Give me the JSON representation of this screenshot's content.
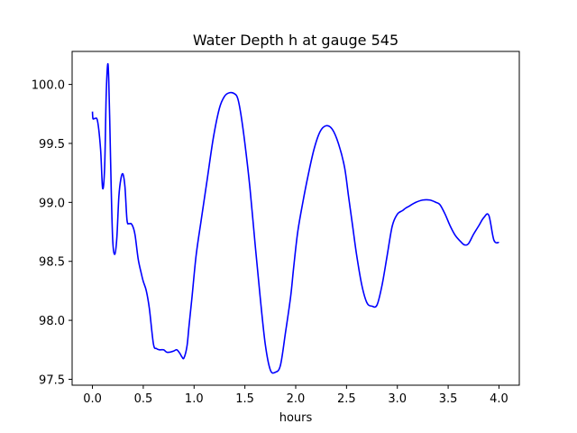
{
  "chart_data": {
    "type": "line",
    "title": "Water Depth h at gauge 545",
    "xlabel": "hours",
    "ylabel": "",
    "xlim": [
      -0.2,
      4.2
    ],
    "ylim": [
      97.45,
      100.28
    ],
    "x_ticks": [
      {
        "value": 0.0,
        "label": "0.0"
      },
      {
        "value": 0.5,
        "label": "0.5"
      },
      {
        "value": 1.0,
        "label": "1.0"
      },
      {
        "value": 1.5,
        "label": "1.5"
      },
      {
        "value": 2.0,
        "label": "2.0"
      },
      {
        "value": 2.5,
        "label": "2.5"
      },
      {
        "value": 3.0,
        "label": "3.0"
      },
      {
        "value": 3.5,
        "label": "3.5"
      },
      {
        "value": 4.0,
        "label": "4.0"
      }
    ],
    "y_ticks": [
      {
        "value": 97.5,
        "label": "97.5"
      },
      {
        "value": 98.0,
        "label": "98.0"
      },
      {
        "value": 98.5,
        "label": "98.5"
      },
      {
        "value": 99.0,
        "label": "99.0"
      },
      {
        "value": 99.5,
        "label": "99.5"
      },
      {
        "value": 100.0,
        "label": "100.0"
      }
    ],
    "grid": false,
    "series": [
      {
        "color": "#0000ff",
        "x": [
          0.0,
          0.005,
          0.02,
          0.05,
          0.08,
          0.1,
          0.12,
          0.135,
          0.15,
          0.16,
          0.17,
          0.185,
          0.2,
          0.22,
          0.24,
          0.26,
          0.28,
          0.3,
          0.32,
          0.34,
          0.36,
          0.38,
          0.4,
          0.42,
          0.45,
          0.48,
          0.5,
          0.53,
          0.56,
          0.6,
          0.63,
          0.66,
          0.7,
          0.73,
          0.76,
          0.8,
          0.83,
          0.86,
          0.88,
          0.9,
          0.93,
          0.95,
          0.98,
          1.02,
          1.07,
          1.13,
          1.19,
          1.25,
          1.3,
          1.35,
          1.4,
          1.43,
          1.46,
          1.5,
          1.55,
          1.6,
          1.65,
          1.7,
          1.75,
          1.8,
          1.85,
          1.9,
          1.95,
          1.98,
          2.02,
          2.07,
          2.12,
          2.18,
          2.24,
          2.3,
          2.36,
          2.42,
          2.48,
          2.52,
          2.56,
          2.6,
          2.65,
          2.7,
          2.75,
          2.8,
          2.85,
          2.9,
          2.95,
          3.0,
          3.05,
          3.08,
          3.12,
          3.18,
          3.25,
          3.32,
          3.38,
          3.42,
          3.47,
          3.52,
          3.57,
          3.62,
          3.66,
          3.7,
          3.75,
          3.8,
          3.85,
          3.9,
          3.95,
          4.0
        ],
        "values": [
          99.77,
          99.71,
          99.71,
          99.69,
          99.45,
          99.12,
          99.3,
          99.9,
          100.17,
          100.05,
          99.7,
          99.1,
          98.67,
          98.56,
          98.7,
          99.05,
          99.2,
          99.24,
          99.13,
          98.85,
          98.82,
          98.82,
          98.79,
          98.72,
          98.52,
          98.4,
          98.33,
          98.25,
          98.1,
          97.8,
          97.76,
          97.75,
          97.75,
          97.73,
          97.73,
          97.74,
          97.75,
          97.72,
          97.69,
          97.68,
          97.78,
          97.95,
          98.2,
          98.55,
          98.85,
          99.2,
          99.55,
          99.8,
          99.9,
          99.93,
          99.92,
          99.88,
          99.75,
          99.5,
          99.12,
          98.65,
          98.2,
          97.8,
          97.58,
          97.56,
          97.62,
          97.9,
          98.2,
          98.45,
          98.75,
          99.0,
          99.22,
          99.45,
          99.6,
          99.65,
          99.62,
          99.5,
          99.3,
          99.05,
          98.8,
          98.55,
          98.3,
          98.15,
          98.12,
          98.13,
          98.3,
          98.55,
          98.8,
          98.9,
          98.93,
          98.95,
          98.97,
          99.0,
          99.02,
          99.02,
          99.0,
          98.98,
          98.9,
          98.8,
          98.72,
          98.67,
          98.64,
          98.65,
          98.73,
          98.8,
          98.87,
          98.89,
          98.68,
          98.66
        ]
      }
    ]
  }
}
